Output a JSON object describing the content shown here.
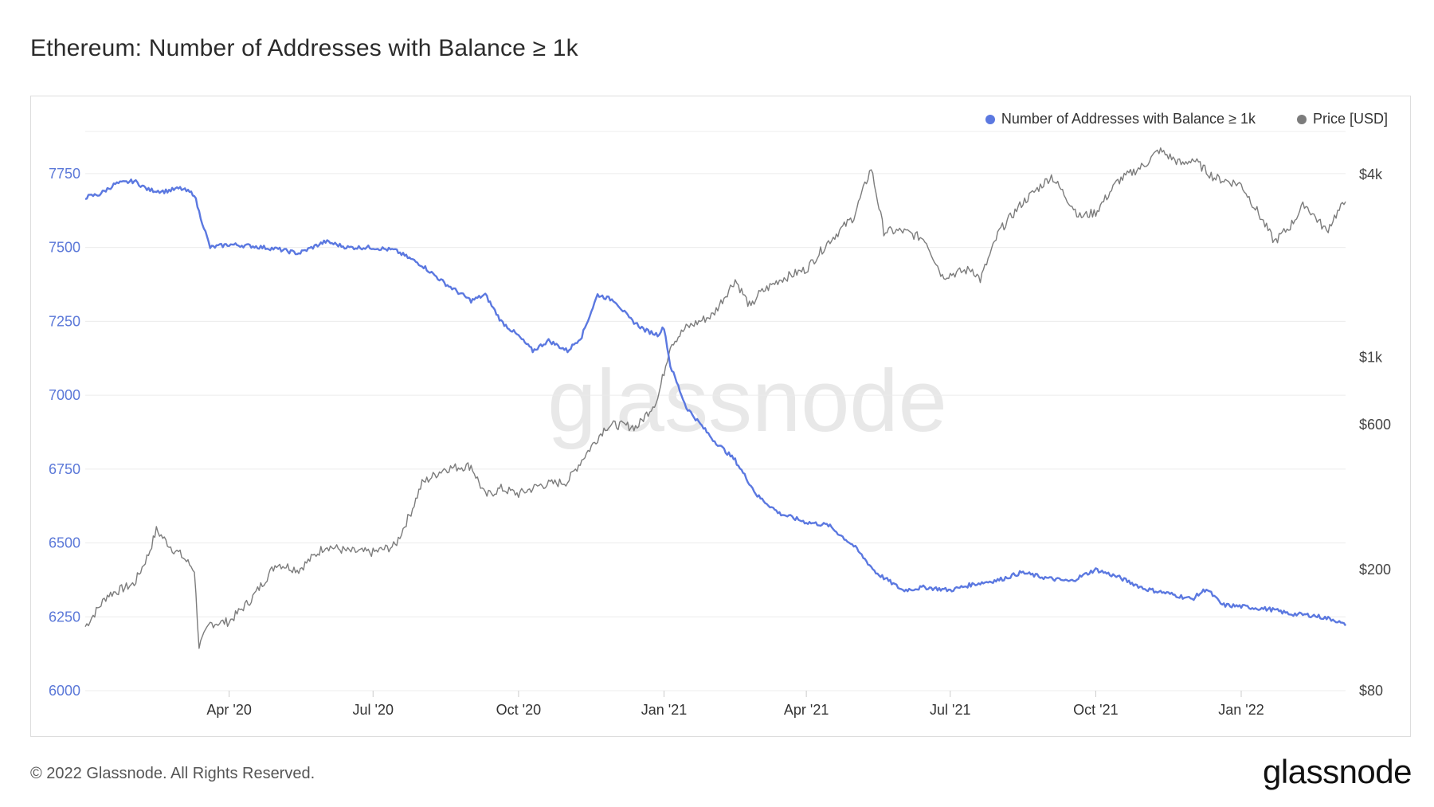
{
  "page": {
    "title": "Ethereum: Number of Addresses with Balance ≥ 1k",
    "copyright": "© 2022 Glassnode. All Rights Reserved.",
    "logo": "glassnode",
    "watermark": "glassnode"
  },
  "legend": [
    {
      "label": "Number of Addresses with Balance ≥ 1k",
      "color": "#5b78e0"
    },
    {
      "label": "Price [USD]",
      "color": "#7c7c7c"
    }
  ],
  "chart_data": {
    "type": "line",
    "title": "Ethereum: Number of Addresses with Balance ≥ 1k",
    "x_range": [
      "2020-01-01",
      "2022-03-08"
    ],
    "x_ticks": [
      {
        "label": "Apr '20",
        "date": "2020-04-01"
      },
      {
        "label": "Jul '20",
        "date": "2020-07-01"
      },
      {
        "label": "Oct '20",
        "date": "2020-10-01"
      },
      {
        "label": "Jan '21",
        "date": "2021-01-01"
      },
      {
        "label": "Apr '21",
        "date": "2021-04-01"
      },
      {
        "label": "Jul '21",
        "date": "2021-07-01"
      },
      {
        "label": "Oct '21",
        "date": "2021-10-01"
      },
      {
        "label": "Jan '22",
        "date": "2022-01-01"
      }
    ],
    "y_left": {
      "label": "Number of Addresses with Balance ≥ 1k",
      "ylim": [
        6000,
        7890
      ],
      "ticks": [
        6000,
        6250,
        6500,
        6750,
        7000,
        7250,
        7500,
        7750
      ],
      "tick_labels": [
        "6000",
        "6250",
        "6500",
        "6750",
        "7000",
        "7250",
        "7500",
        "7750"
      ]
    },
    "y_right": {
      "label": "Price [USD]",
      "scale": "log",
      "ylim": [
        80,
        5500
      ],
      "ticks": [
        80,
        200,
        600,
        1000,
        4000
      ],
      "tick_labels": [
        "$80",
        "$200",
        "$600",
        "$1k",
        "$4k"
      ]
    },
    "series": [
      {
        "name": "Number of Addresses with Balance ≥ 1k",
        "axis": "left",
        "color": "#5b78e0",
        "points": [
          [
            "2020-01-01",
            7670
          ],
          [
            "2020-01-10",
            7680
          ],
          [
            "2020-01-20",
            7715
          ],
          [
            "2020-02-01",
            7725
          ],
          [
            "2020-02-10",
            7695
          ],
          [
            "2020-02-20",
            7690
          ],
          [
            "2020-03-01",
            7700
          ],
          [
            "2020-03-10",
            7680
          ],
          [
            "2020-03-13",
            7620
          ],
          [
            "2020-03-20",
            7500
          ],
          [
            "2020-04-01",
            7510
          ],
          [
            "2020-04-15",
            7505
          ],
          [
            "2020-05-01",
            7495
          ],
          [
            "2020-05-15",
            7480
          ],
          [
            "2020-06-01",
            7520
          ],
          [
            "2020-06-15",
            7500
          ],
          [
            "2020-07-01",
            7500
          ],
          [
            "2020-07-15",
            7490
          ],
          [
            "2020-08-01",
            7440
          ],
          [
            "2020-08-15",
            7380
          ],
          [
            "2020-09-01",
            7320
          ],
          [
            "2020-09-10",
            7340
          ],
          [
            "2020-09-20",
            7250
          ],
          [
            "2020-10-01",
            7200
          ],
          [
            "2020-10-10",
            7150
          ],
          [
            "2020-10-20",
            7185
          ],
          [
            "2020-11-01",
            7150
          ],
          [
            "2020-11-10",
            7200
          ],
          [
            "2020-11-20",
            7340
          ],
          [
            "2020-12-01",
            7320
          ],
          [
            "2020-12-10",
            7260
          ],
          [
            "2020-12-20",
            7220
          ],
          [
            "2020-12-28",
            7205
          ],
          [
            "2021-01-01",
            7230
          ],
          [
            "2021-01-05",
            7100
          ],
          [
            "2021-01-15",
            6960
          ],
          [
            "2021-02-01",
            6850
          ],
          [
            "2021-02-15",
            6780
          ],
          [
            "2021-03-01",
            6660
          ],
          [
            "2021-03-15",
            6600
          ],
          [
            "2021-04-01",
            6570
          ],
          [
            "2021-04-15",
            6560
          ],
          [
            "2021-05-01",
            6490
          ],
          [
            "2021-05-15",
            6400
          ],
          [
            "2021-06-01",
            6340
          ],
          [
            "2021-06-15",
            6350
          ],
          [
            "2021-07-01",
            6340
          ],
          [
            "2021-07-15",
            6360
          ],
          [
            "2021-08-01",
            6375
          ],
          [
            "2021-08-15",
            6400
          ],
          [
            "2021-09-01",
            6380
          ],
          [
            "2021-09-15",
            6370
          ],
          [
            "2021-10-01",
            6410
          ],
          [
            "2021-10-15",
            6385
          ],
          [
            "2021-11-01",
            6345
          ],
          [
            "2021-11-15",
            6330
          ],
          [
            "2021-12-01",
            6310
          ],
          [
            "2021-12-10",
            6345
          ],
          [
            "2021-12-20",
            6290
          ],
          [
            "2022-01-01",
            6285
          ],
          [
            "2022-01-20",
            6275
          ],
          [
            "2022-02-01",
            6260
          ],
          [
            "2022-02-15",
            6255
          ],
          [
            "2022-03-01",
            6240
          ],
          [
            "2022-03-08",
            6220
          ]
        ]
      },
      {
        "name": "Price [USD]",
        "axis": "right",
        "color": "#7c7c7c",
        "points": [
          [
            "2020-01-01",
            130
          ],
          [
            "2020-01-15",
            165
          ],
          [
            "2020-02-01",
            180
          ],
          [
            "2020-02-10",
            225
          ],
          [
            "2020-02-15",
            270
          ],
          [
            "2020-02-25",
            235
          ],
          [
            "2020-03-01",
            225
          ],
          [
            "2020-03-10",
            200
          ],
          [
            "2020-03-13",
            112
          ],
          [
            "2020-03-20",
            133
          ],
          [
            "2020-04-01",
            135
          ],
          [
            "2020-04-15",
            160
          ],
          [
            "2020-05-01",
            210
          ],
          [
            "2020-05-15",
            200
          ],
          [
            "2020-06-01",
            240
          ],
          [
            "2020-06-15",
            230
          ],
          [
            "2020-07-01",
            228
          ],
          [
            "2020-07-15",
            240
          ],
          [
            "2020-07-25",
            310
          ],
          [
            "2020-08-01",
            385
          ],
          [
            "2020-08-15",
            430
          ],
          [
            "2020-09-01",
            440
          ],
          [
            "2020-09-10",
            350
          ],
          [
            "2020-09-20",
            370
          ],
          [
            "2020-10-01",
            355
          ],
          [
            "2020-10-15",
            380
          ],
          [
            "2020-11-01",
            390
          ],
          [
            "2020-11-10",
            460
          ],
          [
            "2020-11-25",
            590
          ],
          [
            "2020-12-01",
            600
          ],
          [
            "2020-12-15",
            590
          ],
          [
            "2020-12-28",
            730
          ],
          [
            "2021-01-05",
            1100
          ],
          [
            "2021-01-15",
            1250
          ],
          [
            "2021-02-01",
            1380
          ],
          [
            "2021-02-15",
            1800
          ],
          [
            "2021-02-25",
            1450
          ],
          [
            "2021-03-01",
            1600
          ],
          [
            "2021-03-15",
            1800
          ],
          [
            "2021-04-01",
            1950
          ],
          [
            "2021-04-15",
            2400
          ],
          [
            "2021-05-01",
            2900
          ],
          [
            "2021-05-12",
            4200
          ],
          [
            "2021-05-20",
            2600
          ],
          [
            "2021-06-01",
            2600
          ],
          [
            "2021-06-15",
            2450
          ],
          [
            "2021-06-26",
            1850
          ],
          [
            "2021-07-15",
            1950
          ],
          [
            "2021-07-20",
            1800
          ],
          [
            "2021-08-01",
            2600
          ],
          [
            "2021-08-15",
            3200
          ],
          [
            "2021-09-03",
            3950
          ],
          [
            "2021-09-21",
            2900
          ],
          [
            "2021-10-01",
            3000
          ],
          [
            "2021-10-15",
            3800
          ],
          [
            "2021-11-01",
            4300
          ],
          [
            "2021-11-10",
            4800
          ],
          [
            "2021-11-25",
            4300
          ],
          [
            "2021-12-01",
            4500
          ],
          [
            "2021-12-15",
            3900
          ],
          [
            "2022-01-01",
            3700
          ],
          [
            "2022-01-10",
            3100
          ],
          [
            "2022-01-22",
            2400
          ],
          [
            "2022-02-01",
            2700
          ],
          [
            "2022-02-10",
            3200
          ],
          [
            "2022-02-24",
            2600
          ],
          [
            "2022-03-01",
            2900
          ],
          [
            "2022-03-08",
            3250
          ]
        ]
      }
    ]
  }
}
